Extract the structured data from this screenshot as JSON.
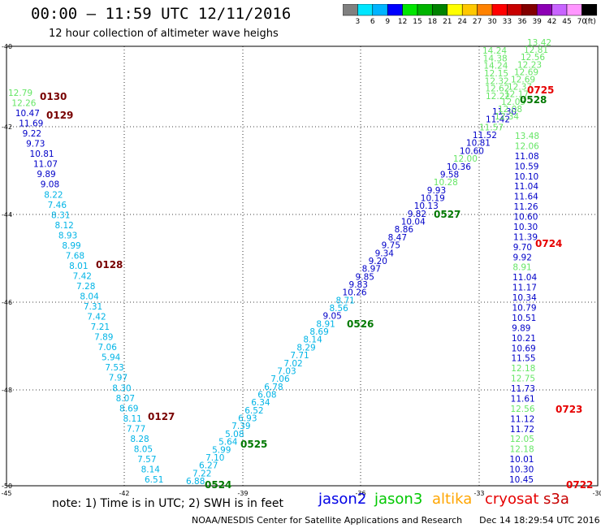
{
  "header": {
    "title": "00:00 – 11:59 UTC 12/11/2016",
    "subtitle": "12 hour collection of altimeter wave heighs"
  },
  "scale": {
    "unit": "(ft)",
    "bins": [
      {
        "label": "3",
        "color": "#808080"
      },
      {
        "label": "6",
        "color": "#00e6ff"
      },
      {
        "label": "9",
        "color": "#00b4ff"
      },
      {
        "label": "12",
        "color": "#0000ff"
      },
      {
        "label": "15",
        "color": "#00e600"
      },
      {
        "label": "18",
        "color": "#00b400"
      },
      {
        "label": "21",
        "color": "#008200"
      },
      {
        "label": "24",
        "color": "#ffff00"
      },
      {
        "label": "27",
        "color": "#ffc800"
      },
      {
        "label": "30",
        "color": "#ff8200"
      },
      {
        "label": "33",
        "color": "#ff0000"
      },
      {
        "label": "36",
        "color": "#c80000"
      },
      {
        "label": "39",
        "color": "#820000"
      },
      {
        "label": "42",
        "color": "#8c00b4"
      },
      {
        "label": "45",
        "color": "#c864ff"
      },
      {
        "label": "70",
        "color": "#ff96ff"
      },
      {
        "label": "",
        "color": "#000000"
      }
    ]
  },
  "map": {
    "lat_ticks": [
      "-40",
      "-42",
      "-44",
      "-46",
      "-48",
      "-50"
    ],
    "lon_ticks": [
      "-45",
      "-42",
      "-39",
      "-36",
      "-33",
      "-30"
    ],
    "colors": {
      "jason2": "#0000c8",
      "jason3": "#00c800",
      "jason3_light": "#66e666",
      "altika": "#ffa500",
      "cryosat": "#e60000",
      "s3a": "#c80000",
      "cyan": "#00b4e6",
      "time_dark": "#780000",
      "time_green": "#007800",
      "time_red": "#e60000"
    },
    "tracks": [
      {
        "name": "track-0127-0130",
        "values": [
          "12.79",
          "12.26",
          "10.47",
          "11.69",
          "9.22",
          "9.73",
          "10.81",
          "11.07",
          "9.89",
          "9.08",
          "8.22",
          "7.46",
          "8.31",
          "8.12",
          "8.93",
          "8.99",
          "7.68",
          "8.01",
          "7.42",
          "7.28",
          "8.04",
          "7.31",
          "7.42",
          "7.21",
          "7.89",
          "7.06",
          "5.94",
          "7.53",
          "7.97",
          "8.30",
          "8.07",
          "8.69",
          "8.11",
          "7.77",
          "8.28",
          "8.05",
          "7.57",
          "8.14",
          "6.51"
        ],
        "colors": [
          "jason3_light",
          "jason3_light",
          "jason2",
          "jason2",
          "jason2",
          "jason2",
          "jason2",
          "jason2",
          "jason2",
          "jason2",
          "cyan",
          "cyan",
          "cyan",
          "cyan",
          "cyan",
          "cyan",
          "cyan",
          "cyan",
          "cyan",
          "cyan",
          "cyan",
          "cyan",
          "cyan",
          "cyan",
          "cyan",
          "cyan",
          "cyan",
          "cyan",
          "cyan",
          "cyan",
          "cyan",
          "cyan",
          "cyan",
          "cyan",
          "cyan",
          "cyan",
          "cyan",
          "cyan",
          "cyan"
        ]
      },
      {
        "name": "track-0524-0528",
        "values": [
          "6.88",
          "7.22",
          "6.27",
          "7.10",
          "5.99",
          "5.64",
          "5.08",
          "7.39",
          "6.93",
          "6.52",
          "6.34",
          "6.08",
          "6.78",
          "7.06",
          "7.03",
          "7.02",
          "7.71",
          "8.29",
          "8.14",
          "8.69",
          "8.91",
          "9.05",
          "8.56",
          "8.71",
          "10.26",
          "9.83",
          "9.85",
          "8.97",
          "9.20",
          "9.34",
          "9.75",
          "8.47",
          "8.86",
          "10.04",
          "9.82",
          "10.13",
          "10.19",
          "9.93",
          "10.28",
          "9.58",
          "10.36",
          "12.00",
          "10.60",
          "10.81",
          "11.52",
          "11.57",
          "11.42",
          "11.30"
        ],
        "colors": [
          "cyan",
          "cyan",
          "cyan",
          "cyan",
          "cyan",
          "cyan",
          "cyan",
          "cyan",
          "cyan",
          "cyan",
          "cyan",
          "cyan",
          "cyan",
          "cyan",
          "cyan",
          "cyan",
          "cyan",
          "cyan",
          "cyan",
          "cyan",
          "cyan",
          "jason2",
          "cyan",
          "cyan",
          "jason2",
          "jason2",
          "jason2",
          "jason2",
          "jason2",
          "jason2",
          "jason2",
          "jason2",
          "jason2",
          "jason2",
          "jason2",
          "jason2",
          "jason2",
          "jason2",
          "jason3_light",
          "jason2",
          "jason2",
          "jason3_light",
          "jason2",
          "jason2",
          "jason2",
          "jason3_light",
          "jason2",
          "jason2"
        ]
      },
      {
        "name": "track-0722-0725-upper",
        "values": [
          "13.42",
          "12.81",
          "12.56",
          "12.23",
          "12.69",
          "12.69",
          "12.37",
          "12.17",
          "12.05",
          "12.08",
          "12.34"
        ],
        "colors": [
          "jason3_light",
          "jason3_light",
          "jason3_light",
          "jason3_light",
          "jason3_light",
          "jason3_light",
          "jason3_light",
          "jason3_light",
          "jason3_light",
          "jason3_light",
          "jason3_light"
        ]
      },
      {
        "name": "track-0722-0725-left",
        "values": [
          "14.24",
          "14.38",
          "14.24",
          "12.15",
          "12.32",
          "12.62",
          "12.22"
        ],
        "colors": [
          "jason3_light",
          "jason3_light",
          "jason3_light",
          "jason3_light",
          "jason3_light",
          "jason3_light",
          "jason3_light"
        ]
      },
      {
        "name": "track-0722-0725",
        "values": [
          "13.48",
          "12.06",
          "11.08",
          "10.59",
          "10.10",
          "11.04",
          "11.64",
          "11.26",
          "10.60",
          "10.30",
          "11.39",
          "9.70",
          "9.92",
          "8.91",
          "11.04",
          "11.17",
          "10.34",
          "10.79",
          "10.51",
          "9.89",
          "10.21",
          "10.69",
          "11.55",
          "12.18",
          "12.75",
          "11.73",
          "11.61",
          "12.56",
          "11.12",
          "11.72",
          "12.05",
          "12.18",
          "10.01",
          "10.30",
          "10.45"
        ],
        "colors": [
          "jason3_light",
          "jason3_light",
          "jason2",
          "jason2",
          "jason2",
          "jason2",
          "jason2",
          "jason2",
          "jason2",
          "jason2",
          "jason2",
          "jason2",
          "jason2",
          "jason3_light",
          "jason2",
          "jason2",
          "jason2",
          "jason2",
          "jason2",
          "jason2",
          "jason2",
          "jason2",
          "jason2",
          "jason3_light",
          "jason3_light",
          "jason2",
          "jason2",
          "jason3_light",
          "jason2",
          "jason2",
          "jason3_light",
          "jason3_light",
          "jason2",
          "jason2",
          "jason2"
        ]
      }
    ],
    "time_labels": [
      {
        "text": "0130",
        "color": "time_dark"
      },
      {
        "text": "0129",
        "color": "time_dark"
      },
      {
        "text": "0128",
        "color": "time_dark"
      },
      {
        "text": "0127",
        "color": "time_dark"
      },
      {
        "text": "0524",
        "color": "time_green"
      },
      {
        "text": "0525",
        "color": "time_green"
      },
      {
        "text": "0526",
        "color": "time_green"
      },
      {
        "text": "0527",
        "color": "time_green"
      },
      {
        "text": "0528",
        "color": "time_green"
      },
      {
        "text": "0725",
        "color": "time_red"
      },
      {
        "text": "0724",
        "color": "time_red"
      },
      {
        "text": "0723",
        "color": "time_red"
      },
      {
        "text": "0722",
        "color": "time_red"
      }
    ]
  },
  "note": "note: 1) Time is in UTC; 2) SWH is in feet",
  "legend": [
    {
      "label": "jason2",
      "color": "#0000e6"
    },
    {
      "label": "jason3",
      "color": "#00c800"
    },
    {
      "label": "altika",
      "color": "#ffa500"
    },
    {
      "label": "cryosat",
      "color": "#e60000"
    },
    {
      "label": "s3a",
      "color": "#c80000"
    }
  ],
  "footer": {
    "credit": "NOAA/NESDIS Center for Satellite Applications and Research",
    "timestamp": "Dec 14 18:29:54 UTC 2016"
  }
}
